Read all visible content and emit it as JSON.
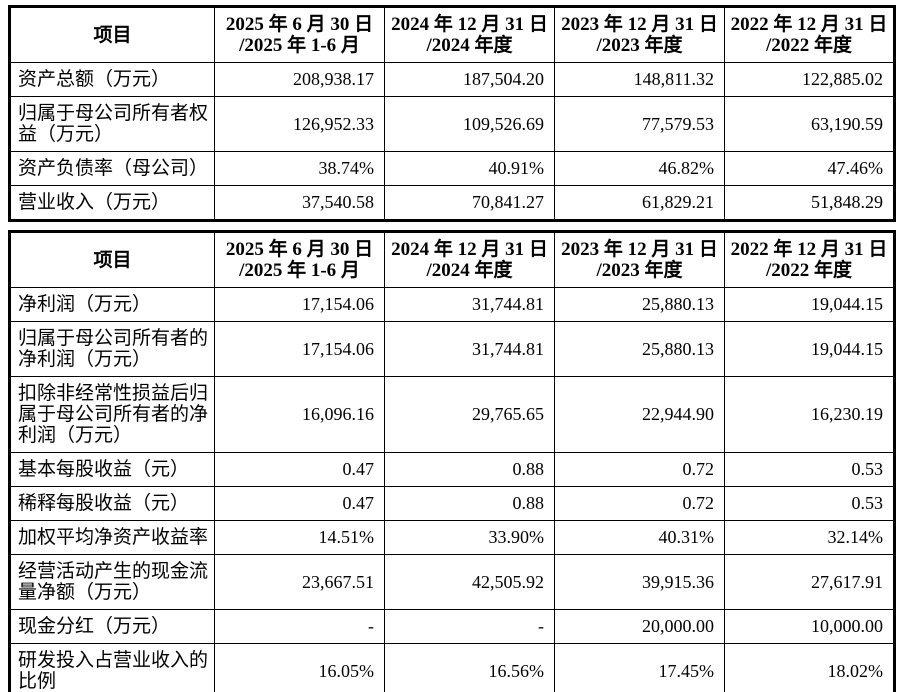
{
  "page": {
    "background_color": "#ffffff",
    "border_color": "#000000",
    "text_color": "#000000"
  },
  "tables": [
    {
      "id": "financial-position-summary",
      "header": [
        {
          "line1": "项目",
          "line2": ""
        },
        {
          "line1": "2025 年 6 月 30 日",
          "line2": "/2025 年 1-6 月"
        },
        {
          "line1": "2024 年 12 月 31 日",
          "line2": "/2024 年度"
        },
        {
          "line1": "2023 年 12 月 31 日",
          "line2": "/2023 年度"
        },
        {
          "line1": "2022 年 12 月 31 日",
          "line2": "/2022 年度"
        }
      ],
      "rows": [
        {
          "label": "资产总额（万元）",
          "values": [
            "208,938.17",
            "187,504.20",
            "148,811.32",
            "122,885.02"
          ]
        },
        {
          "label": "归属于母公司所有者权益（万元）",
          "values": [
            "126,952.33",
            "109,526.69",
            "77,579.53",
            "63,190.59"
          ]
        },
        {
          "label": "资产负债率（母公司）",
          "values": [
            "38.74%",
            "40.91%",
            "46.82%",
            "47.46%"
          ]
        },
        {
          "label": "营业收入（万元）",
          "values": [
            "37,540.58",
            "70,841.27",
            "61,829.21",
            "51,848.29"
          ]
        }
      ]
    },
    {
      "id": "operating-results-summary",
      "header": [
        {
          "line1": "项目",
          "line2": ""
        },
        {
          "line1": "2025 年 6 月 30 日",
          "line2": "/2025 年 1-6 月"
        },
        {
          "line1": "2024 年 12 月 31 日",
          "line2": "/2024 年度"
        },
        {
          "line1": "2023 年 12 月 31 日",
          "line2": "/2023 年度"
        },
        {
          "line1": "2022 年 12 月 31 日",
          "line2": "/2022 年度"
        }
      ],
      "rows": [
        {
          "label": "净利润（万元）",
          "values": [
            "17,154.06",
            "31,744.81",
            "25,880.13",
            "19,044.15"
          ]
        },
        {
          "label": "归属于母公司所有者的净利润（万元）",
          "values": [
            "17,154.06",
            "31,744.81",
            "25,880.13",
            "19,044.15"
          ]
        },
        {
          "label": "扣除非经常性损益后归属于母公司所有者的净利润（万元）",
          "values": [
            "16,096.16",
            "29,765.65",
            "22,944.90",
            "16,230.19"
          ]
        },
        {
          "label": "基本每股收益（元）",
          "values": [
            "0.47",
            "0.88",
            "0.72",
            "0.53"
          ]
        },
        {
          "label": "稀释每股收益（元）",
          "values": [
            "0.47",
            "0.88",
            "0.72",
            "0.53"
          ]
        },
        {
          "label": "加权平均净资产收益率",
          "values": [
            "14.51%",
            "33.90%",
            "40.31%",
            "32.14%"
          ]
        },
        {
          "label": "经营活动产生的现金流量净额（万元）",
          "values": [
            "23,667.51",
            "42,505.92",
            "39,915.36",
            "27,617.91"
          ]
        },
        {
          "label": "现金分红（万元）",
          "values": [
            "-",
            "-",
            "20,000.00",
            "10,000.00"
          ]
        },
        {
          "label": "研发投入占营业收入的比例",
          "values": [
            "16.05%",
            "16.56%",
            "17.45%",
            "18.02%"
          ]
        }
      ]
    }
  ]
}
